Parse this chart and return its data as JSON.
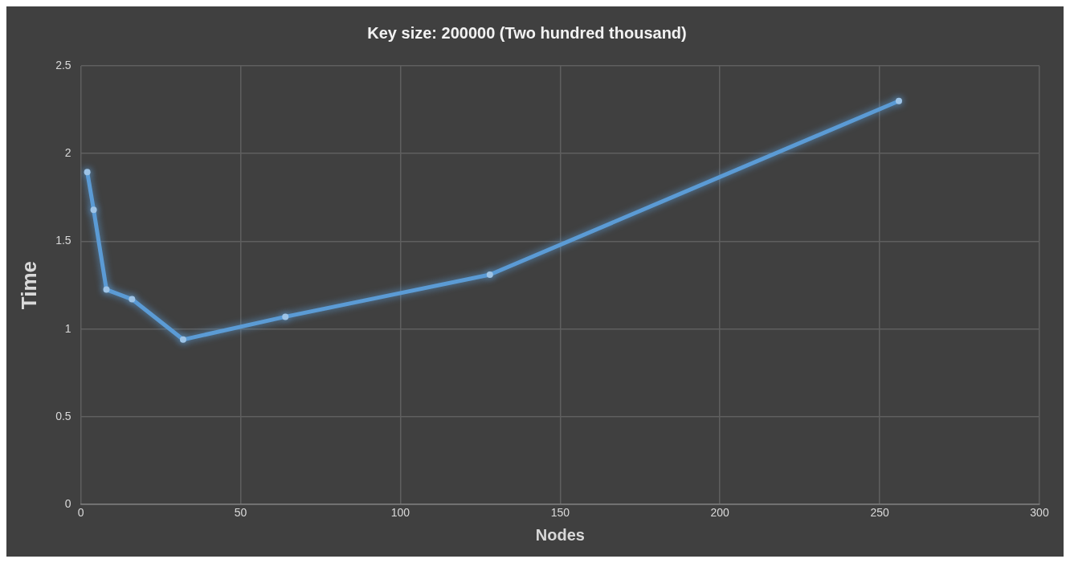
{
  "chart_data": {
    "type": "line",
    "title": "Key size: 200000 (Two hundred thousand)",
    "xlabel": "Nodes",
    "ylabel": "Time",
    "x": [
      2,
      4,
      8,
      16,
      32,
      64,
      128,
      256
    ],
    "series": [
      {
        "color": "#5b9bd5",
        "values": [
          1.895,
          1.68,
          1.225,
          1.17,
          0.94,
          1.07,
          1.31,
          2.3
        ]
      }
    ],
    "xlim": [
      0,
      300
    ],
    "xticks": [
      0,
      50,
      100,
      150,
      200,
      250,
      300
    ],
    "ylim": [
      0,
      2.5
    ],
    "yticks": [
      0,
      0.5,
      1,
      1.5,
      2,
      2.5
    ],
    "grid": true,
    "legend": false,
    "marker": "circle",
    "line_style": "solid"
  }
}
